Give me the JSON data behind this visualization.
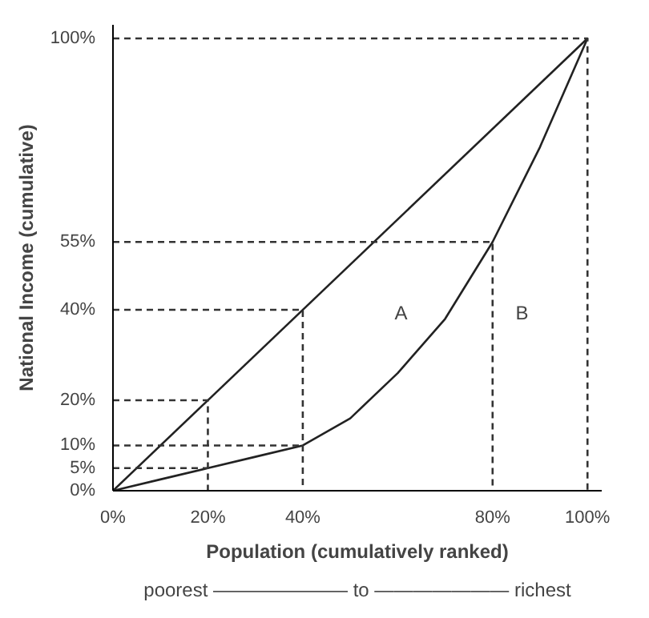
{
  "chart_data": {
    "type": "line",
    "xlabel": "Population (cumulatively ranked)",
    "ylabel": "National Income (cumulative)",
    "xlim": [
      0,
      103
    ],
    "ylim": [
      0,
      103
    ],
    "xticks": [
      {
        "value": 0,
        "label": "0%"
      },
      {
        "value": 20,
        "label": "20%"
      },
      {
        "value": 40,
        "label": "40%"
      },
      {
        "value": 80,
        "label": "80%"
      },
      {
        "value": 100,
        "label": "100%"
      }
    ],
    "yticks": [
      {
        "value": 0,
        "label": "0%"
      },
      {
        "value": 5,
        "label": "5%"
      },
      {
        "value": 10,
        "label": "10%"
      },
      {
        "value": 20,
        "label": "20%"
      },
      {
        "value": 40,
        "label": "40%"
      },
      {
        "value": 55,
        "label": "55%"
      },
      {
        "value": 100,
        "label": "100%"
      }
    ],
    "grid": false,
    "marker": "none",
    "line_style": "solid",
    "series": [
      {
        "color": "#222222",
        "x": [
          0,
          100
        ],
        "values": [
          0,
          100
        ]
      },
      {
        "color": "#222222",
        "x": [
          0,
          10,
          20,
          30,
          40,
          50,
          60,
          70,
          80,
          90,
          100
        ],
        "values": [
          0,
          2.5,
          5,
          7.5,
          10,
          16,
          26,
          38,
          55,
          76,
          100
        ]
      },
      {
        "color": "#333333",
        "line_style": "dashed",
        "x": [
          0,
          20,
          20
        ],
        "values": [
          20,
          20,
          0
        ]
      },
      {
        "color": "#333333",
        "line_style": "dashed",
        "x": [
          0,
          20
        ],
        "values": [
          5,
          5
        ]
      },
      {
        "color": "#333333",
        "line_style": "dashed",
        "x": [
          0,
          40
        ],
        "values": [
          10,
          10
        ]
      },
      {
        "color": "#333333",
        "line_style": "dashed",
        "x": [
          0,
          40,
          40
        ],
        "values": [
          40,
          40,
          0
        ]
      },
      {
        "color": "#333333",
        "line_style": "dashed",
        "x": [
          0,
          80,
          80
        ],
        "values": [
          55,
          55,
          0
        ]
      },
      {
        "color": "#333333",
        "line_style": "dashed",
        "x": [
          0,
          100,
          100
        ],
        "values": [
          100,
          100,
          0
        ]
      }
    ],
    "annotations": [
      "A",
      "B",
      "poorest ——————— to ——————— richest"
    ]
  }
}
